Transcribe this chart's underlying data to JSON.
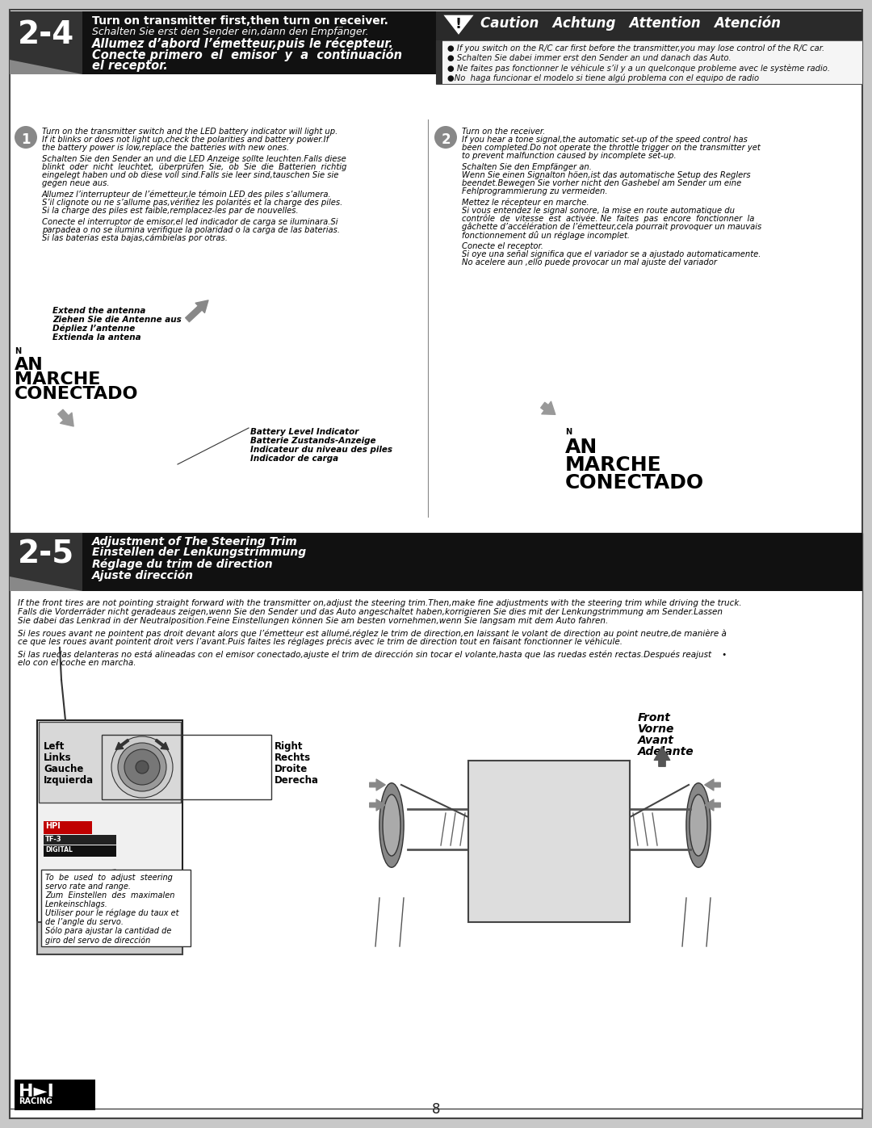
{
  "bg_color": "#c8c8c8",
  "page_bg": "#ffffff",
  "dark_header_bg": "#111111",
  "section_24_title_lines": [
    "Turn on transmitter first,then turn on receiver.",
    "Schalten Sie erst den Sender ein,dann den Empfänger.",
    "Allumez d’abord l’émetteur,puis le récepteur.",
    "Conecte primero  el  emisor  y  a  continuación",
    "el receptor."
  ],
  "caution_title": "Caution   Achtung   Attention   Atención",
  "caution_lines": [
    "If you switch on the R/C car first before the transmitter,you may lose control of the R/C car.",
    "Schalten Sie dabei immer erst den Sender an und danach das Auto.",
    "Ne faites pas fonctionner le véhicule s’il y a un quelconque probleme avec le système radio.",
    "●No  haga funcionar el modelo si tiene algú problema con el equipo de radio"
  ],
  "step1_body": [
    "Turn on the transmitter switch and the LED battery indicator will light up.",
    "If it blinks or does not light up,check the polarities and battery power.If",
    "the battery power is low,replace the batteries with new ones.",
    "",
    "Schalten Sie den Sender an und die LED Anzeige sollte leuchten.Falls diese",
    "blinkt  oder  nicht  leuchtet,  überprüfen  Sie,  ob  Sie  die  Batterien  richtig",
    "eingelegt haben und ob diese voll sind.Falls sie leer sind,tauschen Sie sie",
    "gegen neue aus.",
    "",
    "Allumez l’interrupteur de l’émetteur,le témoin LED des piles s’allumera.",
    "S’il clignote ou ne s’allume pas,vérifiez les polarités et la charge des piles.",
    "Si la charge des piles est faible,remplacez-les par de nouvelles.",
    "",
    "Conecte el interruptor de emisor,el led indicador de carga se iluminara.Si",
    "parpadea o no se ilumina verifique la polaridad o la carga de las baterias.",
    "Si las baterias esta bajas,cámbielas por otras."
  ],
  "step2_body": [
    "Turn on the receiver.",
    "If you hear a tone signal,the automatic set-up of the speed control has",
    "been completed.Do not operate the throttle trigger on the transmitter yet",
    "to prevent malfunction caused by incomplete set-up.",
    "",
    "Schalten Sie den Empfänger an.",
    "Wenn Sie einen Signalton höen,ist das automatische Setup des Reglers",
    "beendet.Bewegen Sie vorher nicht den Gashebel am Sender um eine",
    "Fehlprogrammierung zu vermeiden.",
    "",
    "Mettez le récepteur en marche.",
    "Si vous entendez le signal sonore, la mise en route automatique du",
    "contrôle  de  vitesse  est  activée. Ne  faites  pas  encore  fonctionner  la",
    "gâchette d’accélération de l’émetteur,cela pourrait provoquer un mauvais",
    "fonctionnement dû un réglage incomplet.",
    "",
    "Conecte el receptor.",
    "Si oye una señal significa que el variador se a ajustado automaticamente.",
    "No acelere aun ,ello puede provocar un mal ajuste del variador"
  ],
  "antenna_label": [
    "Extend the antenna",
    "Ziehen Sie die Antenne aus",
    "Dépliez l’antenne",
    "Extienda la antena"
  ],
  "battery_label": [
    "Battery Level Indicator",
    "Batterie Zustands-Anzeige",
    "Indicateur du niveau des piles",
    "Indicador de carga"
  ],
  "section_25_title_lines": [
    "Adjustment of The Steering Trim",
    "Einstellen der Lenkungstrimmung",
    "Réglage du trim de direction",
    "Ajuste dirección"
  ],
  "section_25_body": [
    "If the front tires are not pointing straight forward with the transmitter on,adjust the steering trim.Then,make fine adjustments with the steering trim while driving the truck.",
    "Falls die Vorderräder nicht geradeaus zeigen,wenn Sie den Sender und das Auto angeschaltet haben,korrigieren Sie dies mit der Lenkungstrimmung am Sender.Lassen",
    "Sie dabei das Lenkrad in der Neutralposition.Feine Einstellungen können Sie am besten vornehmen,wenn Sie langsam mit dem Auto fahren.",
    "",
    "Si les roues avant ne pointent pas droit devant alors que l’émetteur est allumé,réglez le trim de direction,en laissant le volant de direction au point neutre,de manière à",
    "ce que les roues avant pointent droit vers l’avant.Puis faites les réglages précis avec le trim de direction tout en faisant fonctionner le véhicule.",
    "",
    "Si las ruedas delanteras no está alineadas con el emisor conectado,ajuste el trim de dirección sin tocar el volante,hasta que las ruedas estén rectas.Después reajust    •",
    "elo con el coche en marcha."
  ],
  "front_label": [
    "Front",
    "Vorne",
    "Avant",
    "Adelante"
  ],
  "servo_label": [
    "To  be  used  to  adjust  steering",
    "servo rate and range.",
    "Zum  Einstellen  des  maximalen",
    "Lenkeinschlags.",
    "Utiliser pour le réglage du taux et",
    "de l’angle du servo.",
    "Sólo para ajustar la cantidad de",
    "giro del servo de dirección"
  ],
  "right_labels": [
    "Right",
    "Rechts",
    "Droite",
    "Derecha"
  ],
  "left_labels": [
    "Left",
    "Links",
    "Gauche",
    "Izquierda"
  ],
  "page_number": "8"
}
